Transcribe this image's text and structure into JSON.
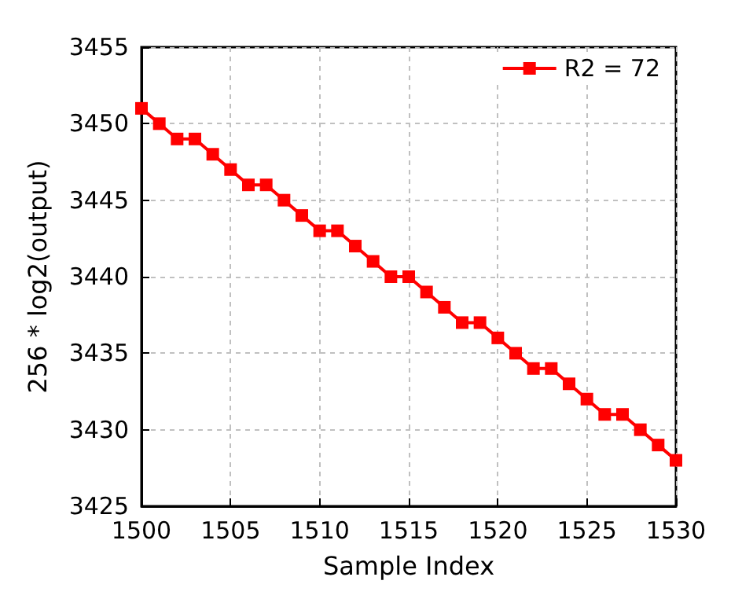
{
  "chart_data": {
    "type": "line",
    "xlabel": "Sample Index",
    "ylabel": "256 * log2(output)",
    "x": [
      1500,
      1501,
      1502,
      1503,
      1504,
      1505,
      1506,
      1507,
      1508,
      1509,
      1510,
      1511,
      1512,
      1513,
      1514,
      1515,
      1516,
      1517,
      1518,
      1519,
      1520,
      1521,
      1522,
      1523,
      1524,
      1525,
      1526,
      1527,
      1528,
      1529,
      1530
    ],
    "series": [
      {
        "name": "R2 = 72",
        "color": "#ff0000",
        "values": [
          3451,
          3450,
          3449,
          3449,
          3448,
          3447,
          3446,
          3446,
          3445,
          3444,
          3443,
          3443,
          3442,
          3441,
          3440,
          3440,
          3439,
          3438,
          3437,
          3437,
          3436,
          3435,
          3434,
          3434,
          3433,
          3432,
          3431,
          3431,
          3430,
          3429,
          3428
        ]
      }
    ],
    "xlim": [
      1500,
      1530
    ],
    "xticks": [
      1500,
      1505,
      1510,
      1515,
      1520,
      1525,
      1530
    ],
    "ylim": [
      3425,
      3455
    ],
    "yticks": [
      3425,
      3430,
      3435,
      3440,
      3445,
      3450,
      3455
    ],
    "grid": true,
    "legend": "top right",
    "marker": "square",
    "line_style": "solid"
  }
}
